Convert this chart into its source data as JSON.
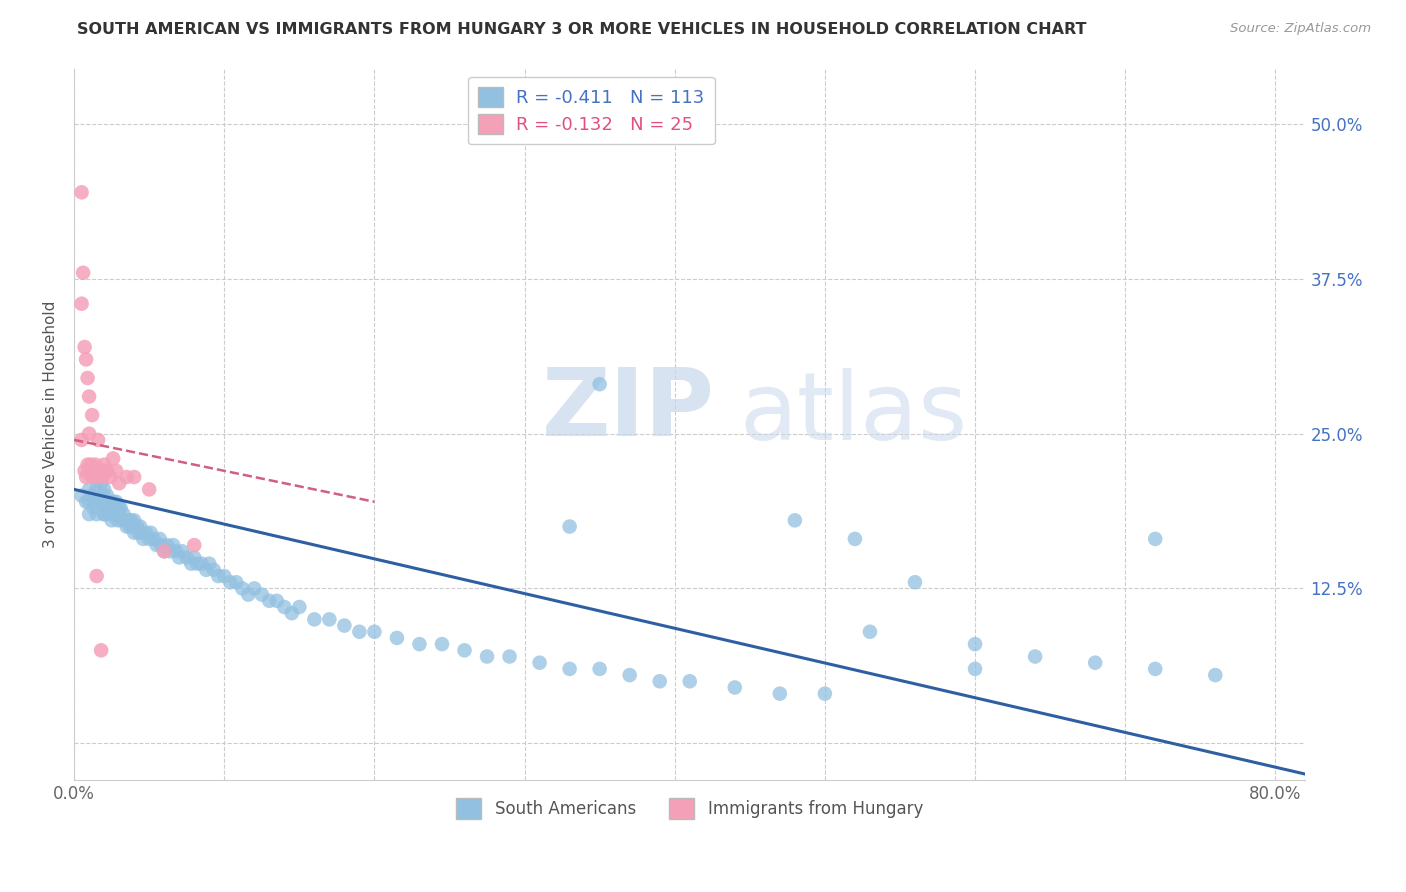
{
  "title": "SOUTH AMERICAN VS IMMIGRANTS FROM HUNGARY 3 OR MORE VEHICLES IN HOUSEHOLD CORRELATION CHART",
  "source": "Source: ZipAtlas.com",
  "ylabel": "3 or more Vehicles in Household",
  "xlim": [
    0.0,
    0.82
  ],
  "ylim": [
    -0.03,
    0.545
  ],
  "xtick_vals": [
    0.0,
    0.1,
    0.2,
    0.3,
    0.4,
    0.5,
    0.6,
    0.7,
    0.8
  ],
  "xticklabels": [
    "0.0%",
    "",
    "",
    "",
    "",
    "",
    "",
    "",
    "80.0%"
  ],
  "ytick_vals": [
    0.0,
    0.125,
    0.25,
    0.375,
    0.5
  ],
  "ytick_labels_right": [
    "",
    "12.5%",
    "25.0%",
    "37.5%",
    "50.0%"
  ],
  "r_south": -0.411,
  "n_south": 113,
  "r_hungary": -0.132,
  "n_hungary": 25,
  "legend_label_south": "South Americans",
  "legend_label_hungary": "Immigrants from Hungary",
  "color_south": "#92c0e0",
  "color_hungary": "#f4a0b8",
  "trendline_south_color": "#2e5fa3",
  "trendline_hungary_color": "#d06080",
  "watermark_zip": "ZIP",
  "watermark_atlas": "atlas",
  "south_trend_x0": 0.0,
  "south_trend_y0": 0.205,
  "south_trend_x1": 0.82,
  "south_trend_y1": -0.025,
  "hungary_trend_x0": 0.0,
  "hungary_trend_y0": 0.245,
  "hungary_trend_x1": 0.2,
  "hungary_trend_y1": 0.195,
  "south_x": [
    0.005,
    0.008,
    0.01,
    0.01,
    0.01,
    0.012,
    0.013,
    0.015,
    0.015,
    0.015,
    0.018,
    0.018,
    0.019,
    0.02,
    0.02,
    0.02,
    0.02,
    0.022,
    0.022,
    0.023,
    0.024,
    0.025,
    0.025,
    0.026,
    0.027,
    0.028,
    0.029,
    0.03,
    0.03,
    0.031,
    0.032,
    0.033,
    0.034,
    0.035,
    0.036,
    0.037,
    0.038,
    0.039,
    0.04,
    0.04,
    0.042,
    0.043,
    0.044,
    0.045,
    0.046,
    0.048,
    0.05,
    0.051,
    0.053,
    0.055,
    0.057,
    0.058,
    0.06,
    0.062,
    0.064,
    0.066,
    0.068,
    0.07,
    0.072,
    0.075,
    0.078,
    0.08,
    0.082,
    0.085,
    0.088,
    0.09,
    0.093,
    0.096,
    0.1,
    0.104,
    0.108,
    0.112,
    0.116,
    0.12,
    0.125,
    0.13,
    0.135,
    0.14,
    0.145,
    0.15,
    0.16,
    0.17,
    0.18,
    0.19,
    0.2,
    0.215,
    0.23,
    0.245,
    0.26,
    0.275,
    0.29,
    0.31,
    0.33,
    0.35,
    0.37,
    0.39,
    0.41,
    0.44,
    0.47,
    0.5,
    0.33,
    0.48,
    0.53,
    0.56,
    0.6,
    0.64,
    0.68,
    0.72,
    0.76,
    0.72,
    0.35,
    0.52,
    0.6
  ],
  "south_y": [
    0.2,
    0.195,
    0.205,
    0.185,
    0.195,
    0.2,
    0.19,
    0.195,
    0.205,
    0.185,
    0.195,
    0.21,
    0.2,
    0.185,
    0.195,
    0.205,
    0.185,
    0.19,
    0.2,
    0.185,
    0.195,
    0.19,
    0.18,
    0.195,
    0.185,
    0.195,
    0.18,
    0.19,
    0.185,
    0.19,
    0.18,
    0.185,
    0.18,
    0.175,
    0.18,
    0.175,
    0.18,
    0.175,
    0.18,
    0.17,
    0.175,
    0.17,
    0.175,
    0.17,
    0.165,
    0.17,
    0.165,
    0.17,
    0.165,
    0.16,
    0.165,
    0.16,
    0.155,
    0.16,
    0.155,
    0.16,
    0.155,
    0.15,
    0.155,
    0.15,
    0.145,
    0.15,
    0.145,
    0.145,
    0.14,
    0.145,
    0.14,
    0.135,
    0.135,
    0.13,
    0.13,
    0.125,
    0.12,
    0.125,
    0.12,
    0.115,
    0.115,
    0.11,
    0.105,
    0.11,
    0.1,
    0.1,
    0.095,
    0.09,
    0.09,
    0.085,
    0.08,
    0.08,
    0.075,
    0.07,
    0.07,
    0.065,
    0.06,
    0.06,
    0.055,
    0.05,
    0.05,
    0.045,
    0.04,
    0.04,
    0.175,
    0.18,
    0.09,
    0.13,
    0.08,
    0.07,
    0.065,
    0.06,
    0.055,
    0.165,
    0.29,
    0.165,
    0.06
  ],
  "hungary_x": [
    0.005,
    0.007,
    0.008,
    0.009,
    0.01,
    0.01,
    0.011,
    0.012,
    0.013,
    0.014,
    0.015,
    0.016,
    0.018,
    0.019,
    0.02,
    0.022,
    0.024,
    0.026,
    0.028,
    0.03,
    0.035,
    0.04,
    0.05,
    0.06,
    0.08
  ],
  "hungary_y": [
    0.245,
    0.22,
    0.215,
    0.225,
    0.25,
    0.22,
    0.225,
    0.215,
    0.22,
    0.225,
    0.215,
    0.245,
    0.22,
    0.215,
    0.225,
    0.22,
    0.215,
    0.23,
    0.22,
    0.21,
    0.215,
    0.215,
    0.205,
    0.155,
    0.16
  ],
  "hungary_outliers_x": [
    0.005,
    0.005,
    0.006,
    0.007,
    0.008,
    0.009,
    0.01,
    0.012,
    0.015,
    0.018
  ],
  "hungary_outliers_y": [
    0.445,
    0.355,
    0.38,
    0.32,
    0.31,
    0.295,
    0.28,
    0.265,
    0.135,
    0.075
  ]
}
